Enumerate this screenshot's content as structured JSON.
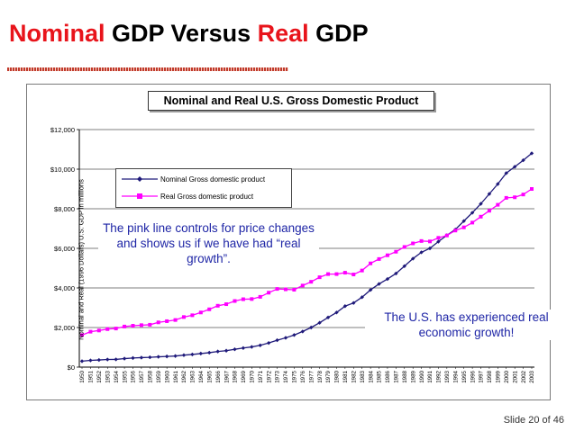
{
  "slide": {
    "title_part1": "Nominal",
    "title_part2": " GDP Versus ",
    "title_part3": "Real",
    "title_part4": " GDP",
    "slide_number": "Slide 20 of 46"
  },
  "callouts": {
    "left": "The pink line controls for price changes and shows us if we have had “real growth”.",
    "right": "The U.S. has experienced real economic growth!"
  },
  "colors": {
    "title_red": "#e8141b",
    "nominal": "#1f1a7a",
    "real": "#ff00ff",
    "callout_text": "#1f26a6"
  },
  "chart_data": {
    "type": "line",
    "title": "Nominal and Real U.S. Gross Domestic Product",
    "xlabel": "",
    "ylabel": "Nominal and Real (1996 Dollars) U.S. GDP in millions",
    "ylim": [
      0,
      12000
    ],
    "yticks": [
      "$0",
      "$2,000",
      "$4,000",
      "$6,000",
      "$8,000",
      "$10,000",
      "$12,000"
    ],
    "legend_position": "upper-left",
    "grid": "horizontal",
    "x": [
      "1950",
      "1951",
      "1952",
      "1953",
      "1954",
      "1955",
      "1956",
      "1957",
      "1958",
      "1959",
      "1960",
      "1961",
      "1962",
      "1963",
      "1964",
      "1965",
      "1966",
      "1967",
      "1968",
      "1969",
      "1970",
      "1971",
      "1972",
      "1973",
      "1974",
      "1975",
      "1976",
      "1977",
      "1978",
      "1979",
      "1980",
      "1981",
      "1982",
      "1983",
      "1984",
      "1985",
      "1986",
      "1987",
      "1988",
      "1989",
      "1990",
      "1991",
      "1992",
      "1993",
      "1994",
      "1995",
      "1996",
      "1997",
      "1998",
      "1999",
      "2000",
      "2001",
      "2002",
      "2003"
    ],
    "series": [
      {
        "name": "Nominal Gross domestic product",
        "values": [
          300,
          340,
          360,
          385,
          390,
          430,
          460,
          480,
          495,
          520,
          540,
          560,
          605,
          640,
          685,
          730,
          790,
          830,
          900,
          965,
          1020,
          1100,
          1220,
          1360,
          1480,
          1620,
          1800,
          2000,
          2240,
          2510,
          2760,
          3080,
          3240,
          3530,
          3900,
          4200,
          4450,
          4730,
          5100,
          5480,
          5800,
          6000,
          6340,
          6660,
          6950,
          7380,
          7800,
          8250,
          8750,
          9250,
          9800,
          10120,
          10450,
          10800
        ]
      },
      {
        "name": "Real Gross domestic product",
        "values": [
          1620,
          1790,
          1850,
          1920,
          1950,
          2050,
          2090,
          2120,
          2140,
          2260,
          2320,
          2380,
          2530,
          2620,
          2760,
          2920,
          3100,
          3180,
          3340,
          3430,
          3440,
          3550,
          3760,
          3950,
          3930,
          3910,
          4120,
          4310,
          4540,
          4700,
          4700,
          4770,
          4680,
          4880,
          5240,
          5460,
          5650,
          5830,
          6070,
          6250,
          6370,
          6350,
          6530,
          6650,
          6900,
          7060,
          7300,
          7600,
          7900,
          8200,
          8550,
          8580,
          8720,
          9000
        ]
      }
    ]
  }
}
